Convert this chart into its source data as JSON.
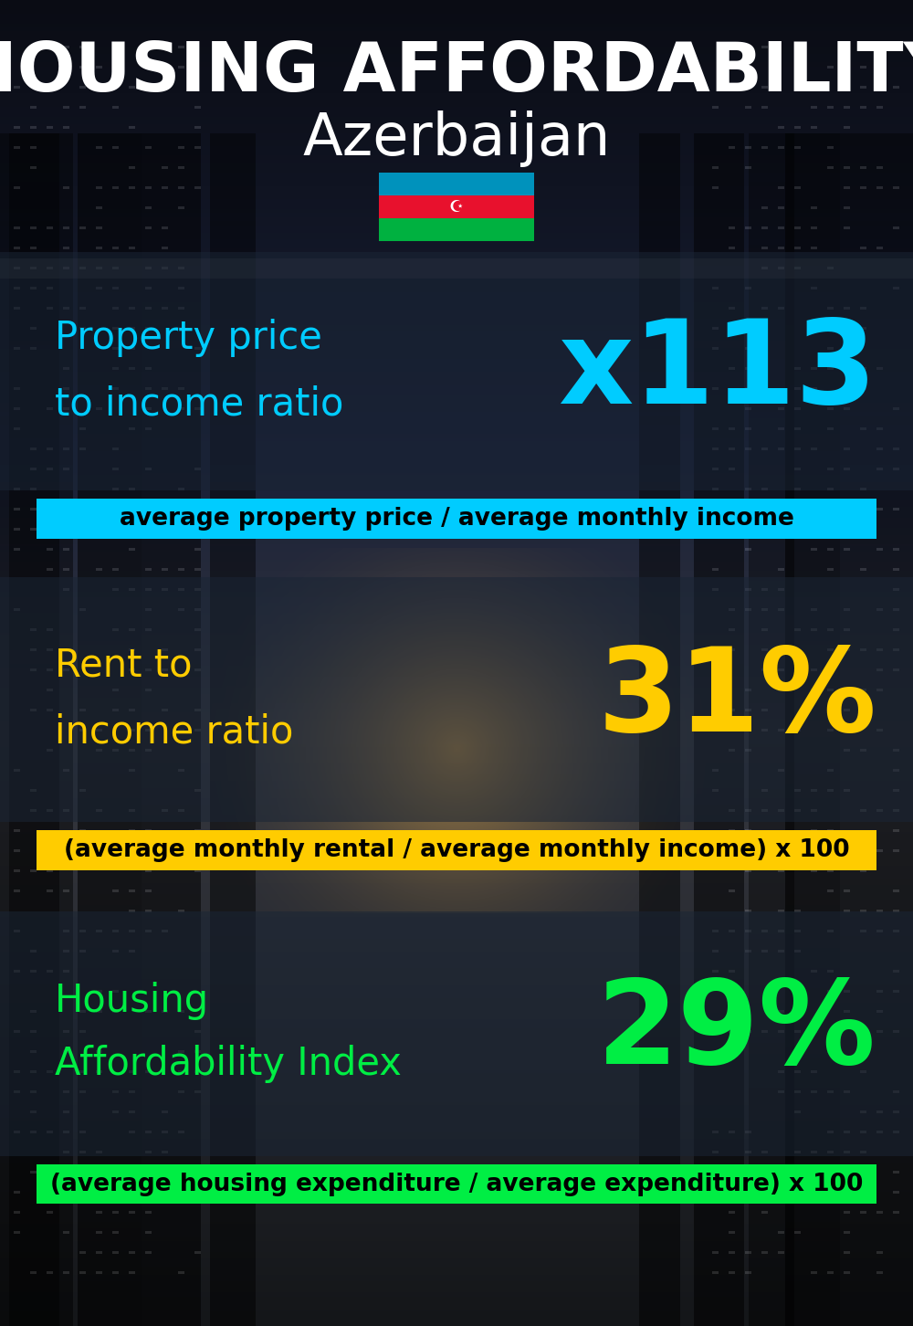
{
  "title_line1": "HOUSING AFFORDABILITY",
  "title_line2": "Azerbaijan",
  "sections": [
    {
      "label_line1": "Property price",
      "label_line2": "to income ratio",
      "value": "x113",
      "value_color": "#00ccff",
      "label_color": "#00ccff",
      "formula": "average property price / average monthly income",
      "formula_bg": "#00ccff",
      "formula_color": "#000000"
    },
    {
      "label_line1": "Rent to",
      "label_line2": "income ratio",
      "value": "31%",
      "value_color": "#ffcc00",
      "label_color": "#ffcc00",
      "formula": "(average monthly rental / average monthly income) x 100",
      "formula_bg": "#ffcc00",
      "formula_color": "#000000"
    },
    {
      "label_line1": "Housing",
      "label_line2": "Affordability Index",
      "value": "29%",
      "value_color": "#00ee44",
      "label_color": "#00ee44",
      "formula": "(average housing expenditure / average expenditure) x 100",
      "formula_bg": "#00ee44",
      "formula_color": "#000000"
    }
  ],
  "bg_color": "#080c10",
  "title_color": "#ffffff",
  "title_fontsize": 54,
  "subtitle_fontsize": 46,
  "label_fontsize": 30,
  "value_fontsize": 92,
  "formula_fontsize": 19,
  "panel_color": "#1a2535",
  "panel_alpha": 0.55
}
